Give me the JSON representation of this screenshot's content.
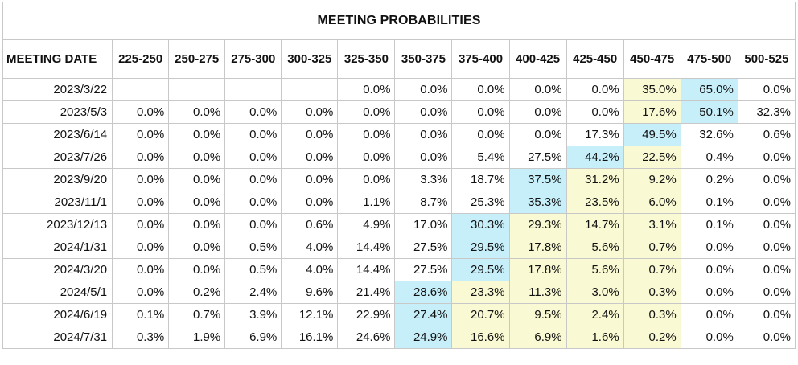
{
  "title": "MEETING PROBABILITIES",
  "date_header": "MEETING DATE",
  "columns": [
    "225-250",
    "250-275",
    "275-300",
    "300-325",
    "325-350",
    "350-375",
    "375-400",
    "400-425",
    "425-450",
    "450-475",
    "475-500",
    "500-525"
  ],
  "rows": [
    {
      "date": "2023/3/22",
      "values": [
        "",
        "",
        "",
        "",
        "0.0%",
        "0.0%",
        "0.0%",
        "0.0%",
        "0.0%",
        "35.0%",
        "65.0%",
        "0.0%"
      ],
      "highlights": [
        "",
        "",
        "",
        "",
        "",
        "",
        "",
        "",
        "",
        "yellow",
        "blue",
        ""
      ]
    },
    {
      "date": "2023/5/3",
      "values": [
        "0.0%",
        "0.0%",
        "0.0%",
        "0.0%",
        "0.0%",
        "0.0%",
        "0.0%",
        "0.0%",
        "0.0%",
        "17.6%",
        "50.1%",
        "32.3%"
      ],
      "highlights": [
        "",
        "",
        "",
        "",
        "",
        "",
        "",
        "",
        "",
        "yellow",
        "blue",
        ""
      ]
    },
    {
      "date": "2023/6/14",
      "values": [
        "0.0%",
        "0.0%",
        "0.0%",
        "0.0%",
        "0.0%",
        "0.0%",
        "0.0%",
        "0.0%",
        "17.3%",
        "49.5%",
        "32.6%",
        "0.6%"
      ],
      "highlights": [
        "",
        "",
        "",
        "",
        "",
        "",
        "",
        "",
        "",
        "blue",
        "",
        ""
      ]
    },
    {
      "date": "2023/7/26",
      "values": [
        "0.0%",
        "0.0%",
        "0.0%",
        "0.0%",
        "0.0%",
        "0.0%",
        "5.4%",
        "27.5%",
        "44.2%",
        "22.5%",
        "0.4%",
        "0.0%"
      ],
      "highlights": [
        "",
        "",
        "",
        "",
        "",
        "",
        "",
        "",
        "blue",
        "yellow",
        "",
        ""
      ]
    },
    {
      "date": "2023/9/20",
      "values": [
        "0.0%",
        "0.0%",
        "0.0%",
        "0.0%",
        "0.0%",
        "3.3%",
        "18.7%",
        "37.5%",
        "31.2%",
        "9.2%",
        "0.2%",
        "0.0%"
      ],
      "highlights": [
        "",
        "",
        "",
        "",
        "",
        "",
        "",
        "blue",
        "yellow",
        "yellow",
        "",
        ""
      ]
    },
    {
      "date": "2023/11/1",
      "values": [
        "0.0%",
        "0.0%",
        "0.0%",
        "0.0%",
        "1.1%",
        "8.7%",
        "25.3%",
        "35.3%",
        "23.5%",
        "6.0%",
        "0.1%",
        "0.0%"
      ],
      "highlights": [
        "",
        "",
        "",
        "",
        "",
        "",
        "",
        "blue",
        "yellow",
        "yellow",
        "",
        ""
      ]
    },
    {
      "date": "2023/12/13",
      "values": [
        "0.0%",
        "0.0%",
        "0.0%",
        "0.6%",
        "4.9%",
        "17.0%",
        "30.3%",
        "29.3%",
        "14.7%",
        "3.1%",
        "0.1%",
        "0.0%"
      ],
      "highlights": [
        "",
        "",
        "",
        "",
        "",
        "",
        "blue",
        "yellow",
        "yellow",
        "yellow",
        "",
        ""
      ]
    },
    {
      "date": "2024/1/31",
      "values": [
        "0.0%",
        "0.0%",
        "0.5%",
        "4.0%",
        "14.4%",
        "27.5%",
        "29.5%",
        "17.8%",
        "5.6%",
        "0.7%",
        "0.0%",
        "0.0%"
      ],
      "highlights": [
        "",
        "",
        "",
        "",
        "",
        "",
        "blue",
        "yellow",
        "yellow",
        "yellow",
        "",
        ""
      ]
    },
    {
      "date": "2024/3/20",
      "values": [
        "0.0%",
        "0.0%",
        "0.5%",
        "4.0%",
        "14.4%",
        "27.5%",
        "29.5%",
        "17.8%",
        "5.6%",
        "0.7%",
        "0.0%",
        "0.0%"
      ],
      "highlights": [
        "",
        "",
        "",
        "",
        "",
        "",
        "blue",
        "yellow",
        "yellow",
        "yellow",
        "",
        ""
      ]
    },
    {
      "date": "2024/5/1",
      "values": [
        "0.0%",
        "0.2%",
        "2.4%",
        "9.6%",
        "21.4%",
        "28.6%",
        "23.3%",
        "11.3%",
        "3.0%",
        "0.3%",
        "0.0%",
        "0.0%"
      ],
      "highlights": [
        "",
        "",
        "",
        "",
        "",
        "blue",
        "yellow",
        "yellow",
        "yellow",
        "yellow",
        "",
        ""
      ]
    },
    {
      "date": "2024/6/19",
      "values": [
        "0.1%",
        "0.7%",
        "3.9%",
        "12.1%",
        "22.9%",
        "27.4%",
        "20.7%",
        "9.5%",
        "2.4%",
        "0.3%",
        "0.0%",
        "0.0%"
      ],
      "highlights": [
        "",
        "",
        "",
        "",
        "",
        "blue",
        "yellow",
        "yellow",
        "yellow",
        "yellow",
        "",
        ""
      ]
    },
    {
      "date": "2024/7/31",
      "values": [
        "0.3%",
        "1.9%",
        "6.9%",
        "16.1%",
        "24.6%",
        "24.9%",
        "16.6%",
        "6.9%",
        "1.6%",
        "0.2%",
        "0.0%",
        "0.0%"
      ],
      "highlights": [
        "",
        "",
        "",
        "",
        "",
        "blue",
        "yellow",
        "yellow",
        "yellow",
        "yellow",
        "",
        ""
      ]
    }
  ],
  "colors": {
    "highlight_blue": "#c6effa",
    "highlight_yellow": "#f9f9d3",
    "border": "#c8c8c8"
  }
}
